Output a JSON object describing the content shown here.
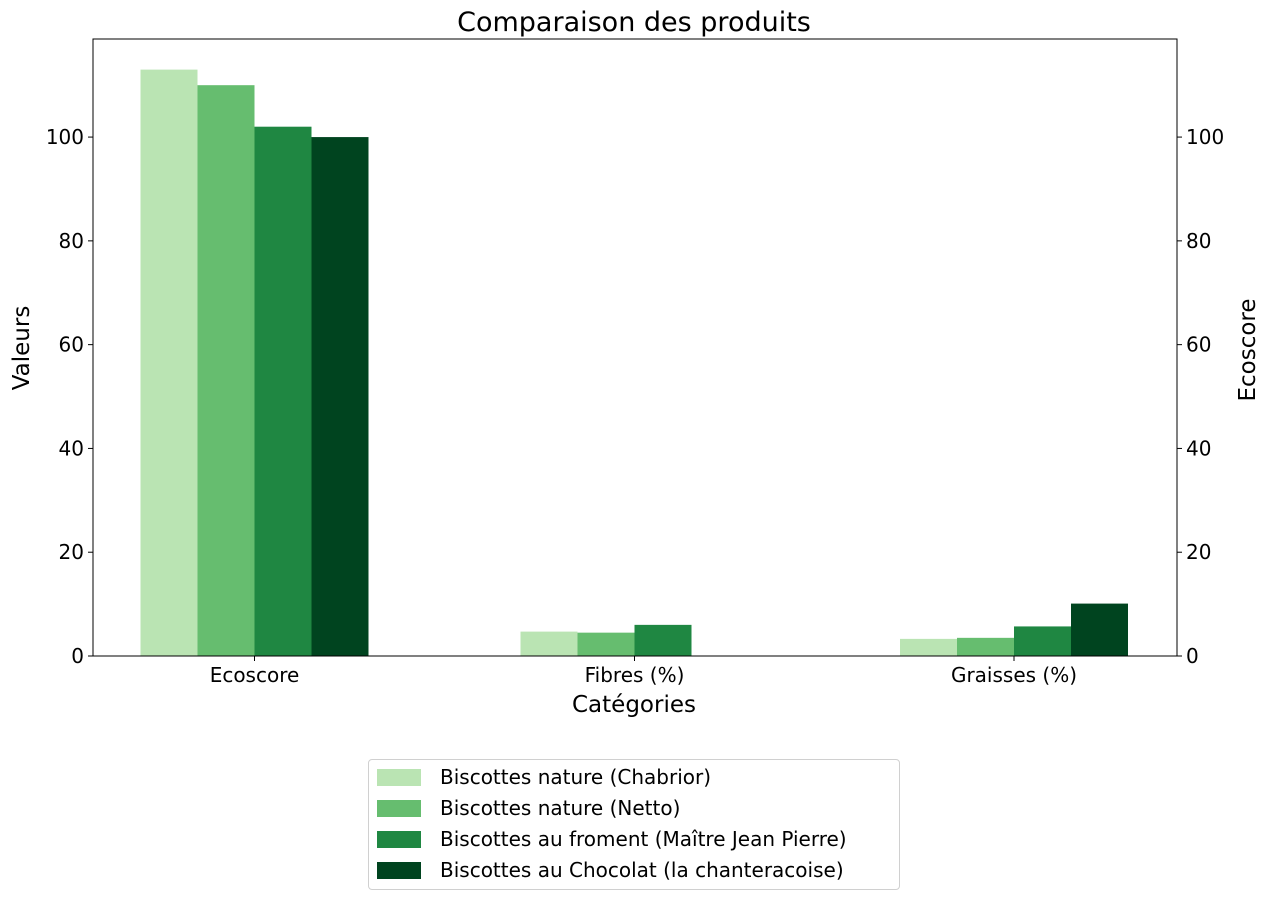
{
  "chart_data": {
    "type": "bar",
    "title": "Comparaison des produits",
    "xlabel": "Catégories",
    "ylabel": "Valeurs",
    "ylabel_right": "Ecoscore",
    "categories": [
      "Ecoscore",
      "Fibres (%)",
      "Graisses (%)"
    ],
    "ylim": [
      0,
      118.9
    ],
    "yticks": [
      0,
      20,
      40,
      60,
      80,
      100
    ],
    "ytick_labels": [
      "0",
      "20",
      "40",
      "60",
      "80",
      "100"
    ],
    "grid": false,
    "legend_position": "bottom-center",
    "series": [
      {
        "name": "Biscottes nature (Chabrior)",
        "color": "#bae4b3",
        "values": [
          113,
          4.7,
          3.3
        ]
      },
      {
        "name": "Biscottes nature (Netto)",
        "color": "#66bd6f",
        "values": [
          110,
          4.5,
          3.5
        ]
      },
      {
        "name": "Biscottes au froment (Maître Jean Pierre)",
        "color": "#1f8742",
        "values": [
          102,
          6.0,
          5.7
        ]
      },
      {
        "name": "Biscottes au Chocolat (la chanteracoise)",
        "color": "#00441f",
        "values": [
          100,
          0,
          10.1
        ]
      }
    ]
  }
}
